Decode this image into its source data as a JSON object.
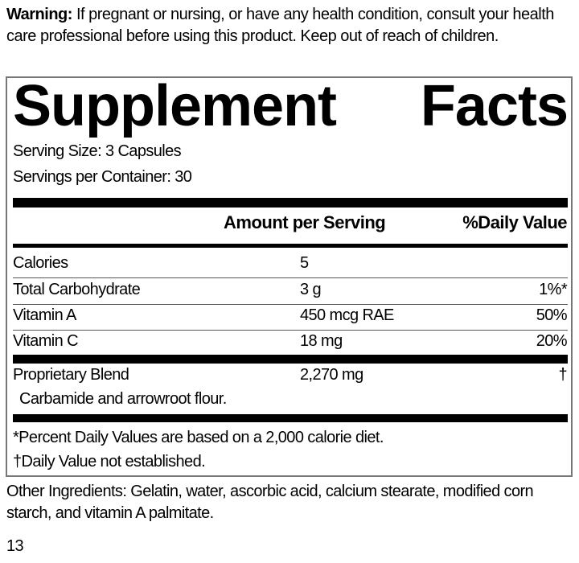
{
  "warning": {
    "label": "Warning:",
    "text": " If pregnant or nursing, or have any health condition, consult your health care professional before using this product. Keep out of reach of children."
  },
  "title": {
    "word1": "Supplement",
    "word2": "Facts"
  },
  "serving_size": "Serving Size: 3 Capsules",
  "servings_per_container": "Servings per Container: 30",
  "header": {
    "amount": "Amount per Serving",
    "dv": "%Daily Value"
  },
  "rows": [
    {
      "name": "Calories",
      "amount": "5",
      "dv": ""
    },
    {
      "name": "Total Carbohydrate",
      "amount": "3 g",
      "dv": "1%*"
    },
    {
      "name": "Vitamin A",
      "amount": "450 mcg RAE",
      "dv": "50%"
    },
    {
      "name": "Vitamin C",
      "amount": "18 mg",
      "dv": "20%"
    },
    {
      "name": "Proprietary Blend",
      "amount": "2,270 mg",
      "dv": "†"
    }
  ],
  "blend_ingredients": "Carbamide and arrowroot flour.",
  "footnotes": [
    "*Percent Daily Values are based on a 2,000 calorie diet.",
    "†Daily Value not established."
  ],
  "other_ingredients": "Other Ingredients: Gelatin, water, ascorbic acid, calcium stearate, modified corn starch, and vitamin A palmitate.",
  "page_number": "13"
}
